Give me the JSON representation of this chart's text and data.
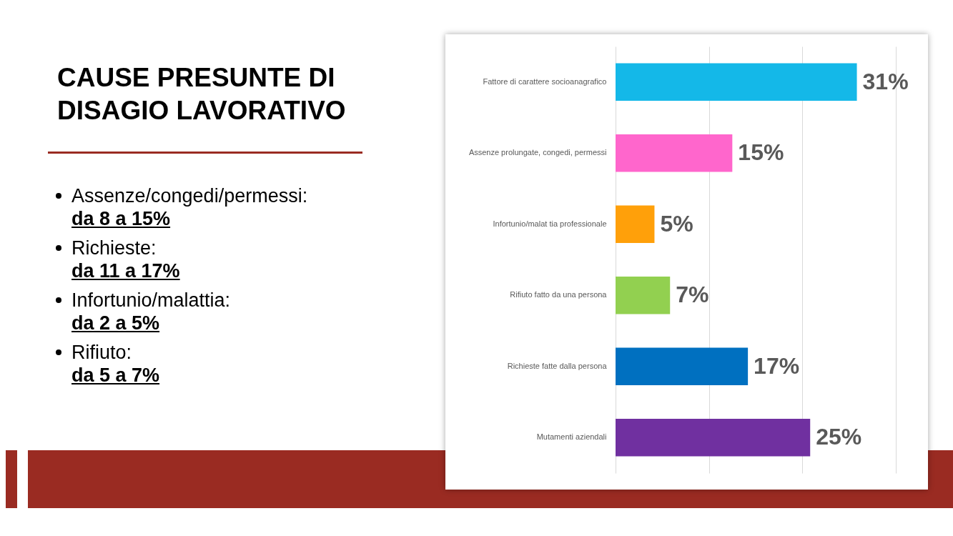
{
  "chart_data": {
    "type": "bar",
    "orientation": "horizontal",
    "title": "CAUSE PRESUNTE DI DISAGIO LAVORATIVO",
    "categories": [
      "Fattore di carattere socioanagrafico",
      "Assenze prolungate, congedi, permessi",
      "Infortunio/malat tia professionale",
      "Rifiuto fatto da una persona",
      "Richieste fatte dalla persona",
      "Mutamenti aziendali"
    ],
    "values": [
      31,
      15,
      5,
      7,
      17,
      25
    ],
    "value_labels": [
      "31%",
      "15%",
      "5%",
      "7%",
      "17%",
      "25%"
    ],
    "colors": [
      "#14b8e8",
      "#ff66cc",
      "#ffa00a",
      "#92d050",
      "#0070c0",
      "#7030a0"
    ],
    "xlim": [
      0,
      36
    ],
    "xticks": [
      {
        "value": 0,
        "label": null
      },
      {
        "value": 12,
        "label": null
      },
      {
        "value": 24,
        "label": null
      },
      {
        "value": 36,
        "label": null
      }
    ],
    "grid": "x",
    "tick_labels": "y",
    "annotations": [
      "Assenze/congedi/permessi:",
      "da 8 a 15%",
      "Richieste:",
      "da 11 a 17%",
      "Infortunio/malattia:",
      "da 2 a 5%",
      "Rifiuto:",
      "da 5 a 7%"
    ]
  }
}
